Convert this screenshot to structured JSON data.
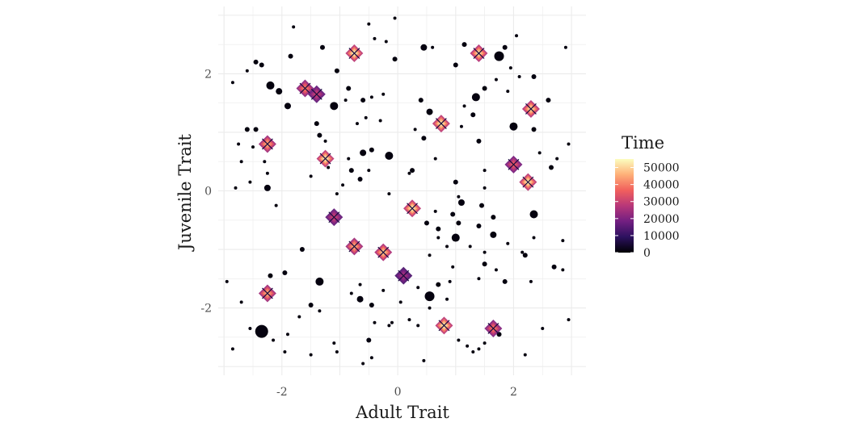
{
  "chart_data": {
    "type": "scatter",
    "xlabel": "Adult Trait",
    "ylabel": "Juvenile Trait",
    "xlim": [
      -3.1,
      3.25
    ],
    "ylim": [
      -3.15,
      3.15
    ],
    "x_ticks": [
      -2,
      0,
      2
    ],
    "y_ticks": [
      -2,
      0,
      2
    ],
    "grid": true,
    "legend": {
      "title": "Time",
      "position": "right",
      "colormap": "magma",
      "range": [
        0,
        55000
      ],
      "labels": [
        0,
        10000,
        20000,
        30000,
        40000,
        50000
      ]
    },
    "colors": {
      "magma_stops": [
        "#000004",
        "#2c115f",
        "#721f81",
        "#b73779",
        "#f1605d",
        "#feb078",
        "#fcfdbf"
      ],
      "grid": "#ebebeb",
      "marker": "#1a0b40"
    },
    "clusters": [
      {
        "x": -0.75,
        "y": 2.35,
        "t": 52000
      },
      {
        "x": 1.4,
        "y": 2.35,
        "t": 50000
      },
      {
        "x": -1.6,
        "y": 1.75,
        "t": 40000
      },
      {
        "x": -1.4,
        "y": 1.65,
        "t": 30000
      },
      {
        "x": 2.3,
        "y": 1.4,
        "t": 50000
      },
      {
        "x": 0.75,
        "y": 1.15,
        "t": 52000
      },
      {
        "x": -2.25,
        "y": 0.8,
        "t": 45000
      },
      {
        "x": -1.25,
        "y": 0.55,
        "t": 52000
      },
      {
        "x": 2.0,
        "y": 0.45,
        "t": 35000
      },
      {
        "x": 2.25,
        "y": 0.15,
        "t": 52000
      },
      {
        "x": -1.1,
        "y": -0.45,
        "t": 30000
      },
      {
        "x": 0.25,
        "y": -0.3,
        "t": 52000
      },
      {
        "x": -0.75,
        "y": -0.95,
        "t": 45000
      },
      {
        "x": -0.25,
        "y": -1.05,
        "t": 48000
      },
      {
        "x": 0.1,
        "y": -1.45,
        "t": 25000
      },
      {
        "x": -2.25,
        "y": -1.75,
        "t": 45000
      },
      {
        "x": 0.8,
        "y": -2.3,
        "t": 52000
      },
      {
        "x": 1.65,
        "y": -2.35,
        "t": 38000
      }
    ],
    "points": [
      {
        "x": -2.85,
        "y": 1.85,
        "s": 2
      },
      {
        "x": -2.45,
        "y": 2.2,
        "s": 3
      },
      {
        "x": -2.6,
        "y": 2.05,
        "s": 2
      },
      {
        "x": -1.8,
        "y": 2.8,
        "s": 2
      },
      {
        "x": -1.85,
        "y": 2.3,
        "s": 3
      },
      {
        "x": -1.3,
        "y": 2.45,
        "s": 3
      },
      {
        "x": -1.05,
        "y": 2.05,
        "s": 3
      },
      {
        "x": -0.5,
        "y": 2.85,
        "s": 2
      },
      {
        "x": -0.05,
        "y": 2.95,
        "s": 2
      },
      {
        "x": -0.4,
        "y": 2.6,
        "s": 2
      },
      {
        "x": -0.2,
        "y": 2.55,
        "s": 2
      },
      {
        "x": -0.05,
        "y": 2.25,
        "s": 3
      },
      {
        "x": 0.45,
        "y": 2.45,
        "s": 4
      },
      {
        "x": 0.6,
        "y": 2.45,
        "s": 2
      },
      {
        "x": 1.0,
        "y": 2.15,
        "s": 3
      },
      {
        "x": 1.15,
        "y": 2.5,
        "s": 3
      },
      {
        "x": 1.75,
        "y": 2.3,
        "s": 6
      },
      {
        "x": 1.85,
        "y": 2.45,
        "s": 3
      },
      {
        "x": 2.05,
        "y": 2.65,
        "s": 2
      },
      {
        "x": 2.9,
        "y": 2.45,
        "s": 2
      },
      {
        "x": 1.95,
        "y": 2.1,
        "s": 2
      },
      {
        "x": -2.2,
        "y": 1.8,
        "s": 5
      },
      {
        "x": -2.05,
        "y": 1.7,
        "s": 4
      },
      {
        "x": -1.9,
        "y": 1.45,
        "s": 4
      },
      {
        "x": -1.1,
        "y": 1.45,
        "s": 5
      },
      {
        "x": -0.85,
        "y": 1.75,
        "s": 3
      },
      {
        "x": -0.9,
        "y": 1.55,
        "s": 2
      },
      {
        "x": -0.6,
        "y": 1.55,
        "s": 3
      },
      {
        "x": -0.45,
        "y": 1.6,
        "s": 2
      },
      {
        "x": -0.25,
        "y": 1.65,
        "s": 2
      },
      {
        "x": -0.7,
        "y": 1.15,
        "s": 2
      },
      {
        "x": -0.55,
        "y": 1.25,
        "s": 2
      },
      {
        "x": -0.3,
        "y": 1.2,
        "s": 2
      },
      {
        "x": 0.4,
        "y": 1.55,
        "s": 3
      },
      {
        "x": 0.55,
        "y": 1.35,
        "s": 4
      },
      {
        "x": 0.3,
        "y": 1.05,
        "s": 2
      },
      {
        "x": 0.45,
        "y": 0.9,
        "s": 3
      },
      {
        "x": 1.35,
        "y": 1.6,
        "s": 5
      },
      {
        "x": 1.5,
        "y": 1.75,
        "s": 3
      },
      {
        "x": 1.7,
        "y": 1.9,
        "s": 2
      },
      {
        "x": 1.9,
        "y": 1.7,
        "s": 2
      },
      {
        "x": 2.1,
        "y": 1.95,
        "s": 2
      },
      {
        "x": 2.35,
        "y": 1.95,
        "s": 3
      },
      {
        "x": 2.6,
        "y": 1.55,
        "s": 3
      },
      {
        "x": 1.3,
        "y": 1.3,
        "s": 3
      },
      {
        "x": 1.15,
        "y": 1.45,
        "s": 2
      },
      {
        "x": 1.1,
        "y": 1.1,
        "s": 2
      },
      {
        "x": 2.0,
        "y": 1.1,
        "s": 5
      },
      {
        "x": 2.35,
        "y": 1.05,
        "s": 3
      },
      {
        "x": 1.4,
        "y": 0.85,
        "s": 3
      },
      {
        "x": 2.65,
        "y": 0.4,
        "s": 3
      },
      {
        "x": 2.75,
        "y": 0.55,
        "s": 2
      },
      {
        "x": 2.95,
        "y": 0.8,
        "s": 2
      },
      {
        "x": 2.45,
        "y": 0.65,
        "s": 2
      },
      {
        "x": -1.4,
        "y": 1.15,
        "s": 3
      },
      {
        "x": -1.35,
        "y": 0.95,
        "s": 3
      },
      {
        "x": -1.25,
        "y": 0.85,
        "s": 2
      },
      {
        "x": -2.6,
        "y": 1.05,
        "s": 3
      },
      {
        "x": -2.45,
        "y": 1.05,
        "s": 3
      },
      {
        "x": -2.75,
        "y": 0.8,
        "s": 2
      },
      {
        "x": -2.5,
        "y": 0.75,
        "s": 2
      },
      {
        "x": -2.3,
        "y": 0.5,
        "s": 2
      },
      {
        "x": -2.7,
        "y": 0.5,
        "s": 2
      },
      {
        "x": -2.8,
        "y": 0.05,
        "s": 2
      },
      {
        "x": -2.55,
        "y": 0.15,
        "s": 2
      },
      {
        "x": -2.25,
        "y": 0.05,
        "s": 4
      },
      {
        "x": -2.1,
        "y": -0.25,
        "s": 2
      },
      {
        "x": -2.25,
        "y": 0.3,
        "s": 2
      },
      {
        "x": -0.85,
        "y": 0.55,
        "s": 2
      },
      {
        "x": -0.8,
        "y": 0.35,
        "s": 3
      },
      {
        "x": -0.65,
        "y": 0.2,
        "s": 3
      },
      {
        "x": -0.5,
        "y": 0.35,
        "s": 2
      },
      {
        "x": -0.95,
        "y": 0.1,
        "s": 2
      },
      {
        "x": -1.05,
        "y": -0.05,
        "s": 2
      },
      {
        "x": -0.6,
        "y": 0.65,
        "s": 4
      },
      {
        "x": -0.45,
        "y": 0.7,
        "s": 3
      },
      {
        "x": -0.15,
        "y": 0.6,
        "s": 5
      },
      {
        "x": 0.25,
        "y": 0.35,
        "s": 3
      },
      {
        "x": -0.15,
        "y": -0.05,
        "s": 2
      },
      {
        "x": 0.65,
        "y": 0.55,
        "s": 2
      },
      {
        "x": 1.0,
        "y": 0.15,
        "s": 3
      },
      {
        "x": 1.5,
        "y": 0.35,
        "s": 2
      },
      {
        "x": 1.5,
        "y": 0.05,
        "s": 2
      },
      {
        "x": 1.05,
        "y": -0.1,
        "s": 2
      },
      {
        "x": 1.1,
        "y": -0.2,
        "s": 4
      },
      {
        "x": 0.95,
        "y": -0.4,
        "s": 3
      },
      {
        "x": 1.05,
        "y": -0.55,
        "s": 3
      },
      {
        "x": 1.45,
        "y": -0.25,
        "s": 3
      },
      {
        "x": 1.4,
        "y": -0.6,
        "s": 3
      },
      {
        "x": 1.65,
        "y": -0.45,
        "s": 3
      },
      {
        "x": 0.65,
        "y": -0.35,
        "s": 2
      },
      {
        "x": 0.5,
        "y": -0.55,
        "s": 3
      },
      {
        "x": 0.7,
        "y": -0.65,
        "s": 3
      },
      {
        "x": 0.7,
        "y": -0.8,
        "s": 2
      },
      {
        "x": 0.85,
        "y": -0.95,
        "s": 2
      },
      {
        "x": 1.0,
        "y": -0.8,
        "s": 5
      },
      {
        "x": 1.25,
        "y": -0.95,
        "s": 2
      },
      {
        "x": 1.5,
        "y": -1.05,
        "s": 2
      },
      {
        "x": 1.65,
        "y": -0.75,
        "s": 4
      },
      {
        "x": 1.9,
        "y": -0.9,
        "s": 2
      },
      {
        "x": 1.5,
        "y": -1.25,
        "s": 3
      },
      {
        "x": 1.7,
        "y": -1.35,
        "s": 2
      },
      {
        "x": 1.4,
        "y": -1.5,
        "s": 2
      },
      {
        "x": 1.85,
        "y": -1.55,
        "s": 3
      },
      {
        "x": 2.2,
        "y": -1.1,
        "s": 3
      },
      {
        "x": 2.35,
        "y": -0.8,
        "s": 2
      },
      {
        "x": 2.35,
        "y": -0.4,
        "s": 5
      },
      {
        "x": 2.3,
        "y": -1.55,
        "s": 2
      },
      {
        "x": 2.85,
        "y": -0.85,
        "s": 2
      },
      {
        "x": 2.7,
        "y": -1.3,
        "s": 3
      },
      {
        "x": 2.85,
        "y": -1.35,
        "s": 2
      },
      {
        "x": 2.15,
        "y": -1.05,
        "s": 2
      },
      {
        "x": -1.95,
        "y": -1.4,
        "s": 3
      },
      {
        "x": -2.2,
        "y": -1.45,
        "s": 3
      },
      {
        "x": -1.35,
        "y": -1.55,
        "s": 5
      },
      {
        "x": -1.65,
        "y": -1.0,
        "s": 3
      },
      {
        "x": -1.5,
        "y": -1.95,
        "s": 3
      },
      {
        "x": -1.7,
        "y": -2.15,
        "s": 2
      },
      {
        "x": -1.35,
        "y": -2.05,
        "s": 2
      },
      {
        "x": -0.8,
        "y": -1.75,
        "s": 2
      },
      {
        "x": -0.65,
        "y": -1.6,
        "s": 2
      },
      {
        "x": -0.65,
        "y": -1.85,
        "s": 4
      },
      {
        "x": -0.45,
        "y": -1.95,
        "s": 3
      },
      {
        "x": -0.4,
        "y": -2.25,
        "s": 2
      },
      {
        "x": -0.15,
        "y": -2.3,
        "s": 2
      },
      {
        "x": -0.25,
        "y": -1.7,
        "s": 2
      },
      {
        "x": 0.05,
        "y": -1.9,
        "s": 2
      },
      {
        "x": -0.1,
        "y": -2.25,
        "s": 2
      },
      {
        "x": 0.35,
        "y": -1.65,
        "s": 2
      },
      {
        "x": 0.55,
        "y": -1.8,
        "s": 6
      },
      {
        "x": 0.7,
        "y": -1.6,
        "s": 3
      },
      {
        "x": 0.55,
        "y": -2.0,
        "s": 2
      },
      {
        "x": 0.9,
        "y": -1.55,
        "s": 2
      },
      {
        "x": 0.85,
        "y": -1.85,
        "s": 2
      },
      {
        "x": 0.95,
        "y": -1.3,
        "s": 2
      },
      {
        "x": 0.55,
        "y": -1.1,
        "s": 2
      },
      {
        "x": -2.7,
        "y": -1.9,
        "s": 2
      },
      {
        "x": -2.95,
        "y": -1.55,
        "s": 2
      },
      {
        "x": -2.35,
        "y": -2.4,
        "s": 8
      },
      {
        "x": -2.55,
        "y": -2.35,
        "s": 2
      },
      {
        "x": -2.15,
        "y": -2.55,
        "s": 2
      },
      {
        "x": -1.9,
        "y": -2.45,
        "s": 2
      },
      {
        "x": -1.95,
        "y": -2.75,
        "s": 2
      },
      {
        "x": -2.85,
        "y": -2.7,
        "s": 2
      },
      {
        "x": -1.5,
        "y": -2.8,
        "s": 2
      },
      {
        "x": -1.1,
        "y": -2.6,
        "s": 2
      },
      {
        "x": -1.05,
        "y": -2.75,
        "s": 2
      },
      {
        "x": -0.5,
        "y": -2.55,
        "s": 3
      },
      {
        "x": -0.45,
        "y": -2.85,
        "s": 2
      },
      {
        "x": -0.6,
        "y": -2.95,
        "s": 2
      },
      {
        "x": 0.45,
        "y": -2.9,
        "s": 2
      },
      {
        "x": 1.2,
        "y": -2.65,
        "s": 2
      },
      {
        "x": 1.3,
        "y": -2.75,
        "s": 2
      },
      {
        "x": 1.4,
        "y": -2.7,
        "s": 2
      },
      {
        "x": 1.5,
        "y": -2.6,
        "s": 2
      },
      {
        "x": 2.2,
        "y": -2.8,
        "s": 2
      },
      {
        "x": 2.5,
        "y": -2.35,
        "s": 2
      },
      {
        "x": 2.95,
        "y": -2.2,
        "s": 2
      },
      {
        "x": 1.05,
        "y": -2.55,
        "s": 2
      },
      {
        "x": 1.75,
        "y": -2.45,
        "s": 3
      },
      {
        "x": 0.2,
        "y": -2.2,
        "s": 2
      },
      {
        "x": 0.35,
        "y": -2.3,
        "s": 2
      },
      {
        "x": -1.5,
        "y": 0.25,
        "s": 2
      },
      {
        "x": -1.2,
        "y": 0.4,
        "s": 2
      },
      {
        "x": -2.35,
        "y": 2.15,
        "s": 3
      },
      {
        "x": 0.2,
        "y": 0.3,
        "s": 2
      }
    ]
  }
}
